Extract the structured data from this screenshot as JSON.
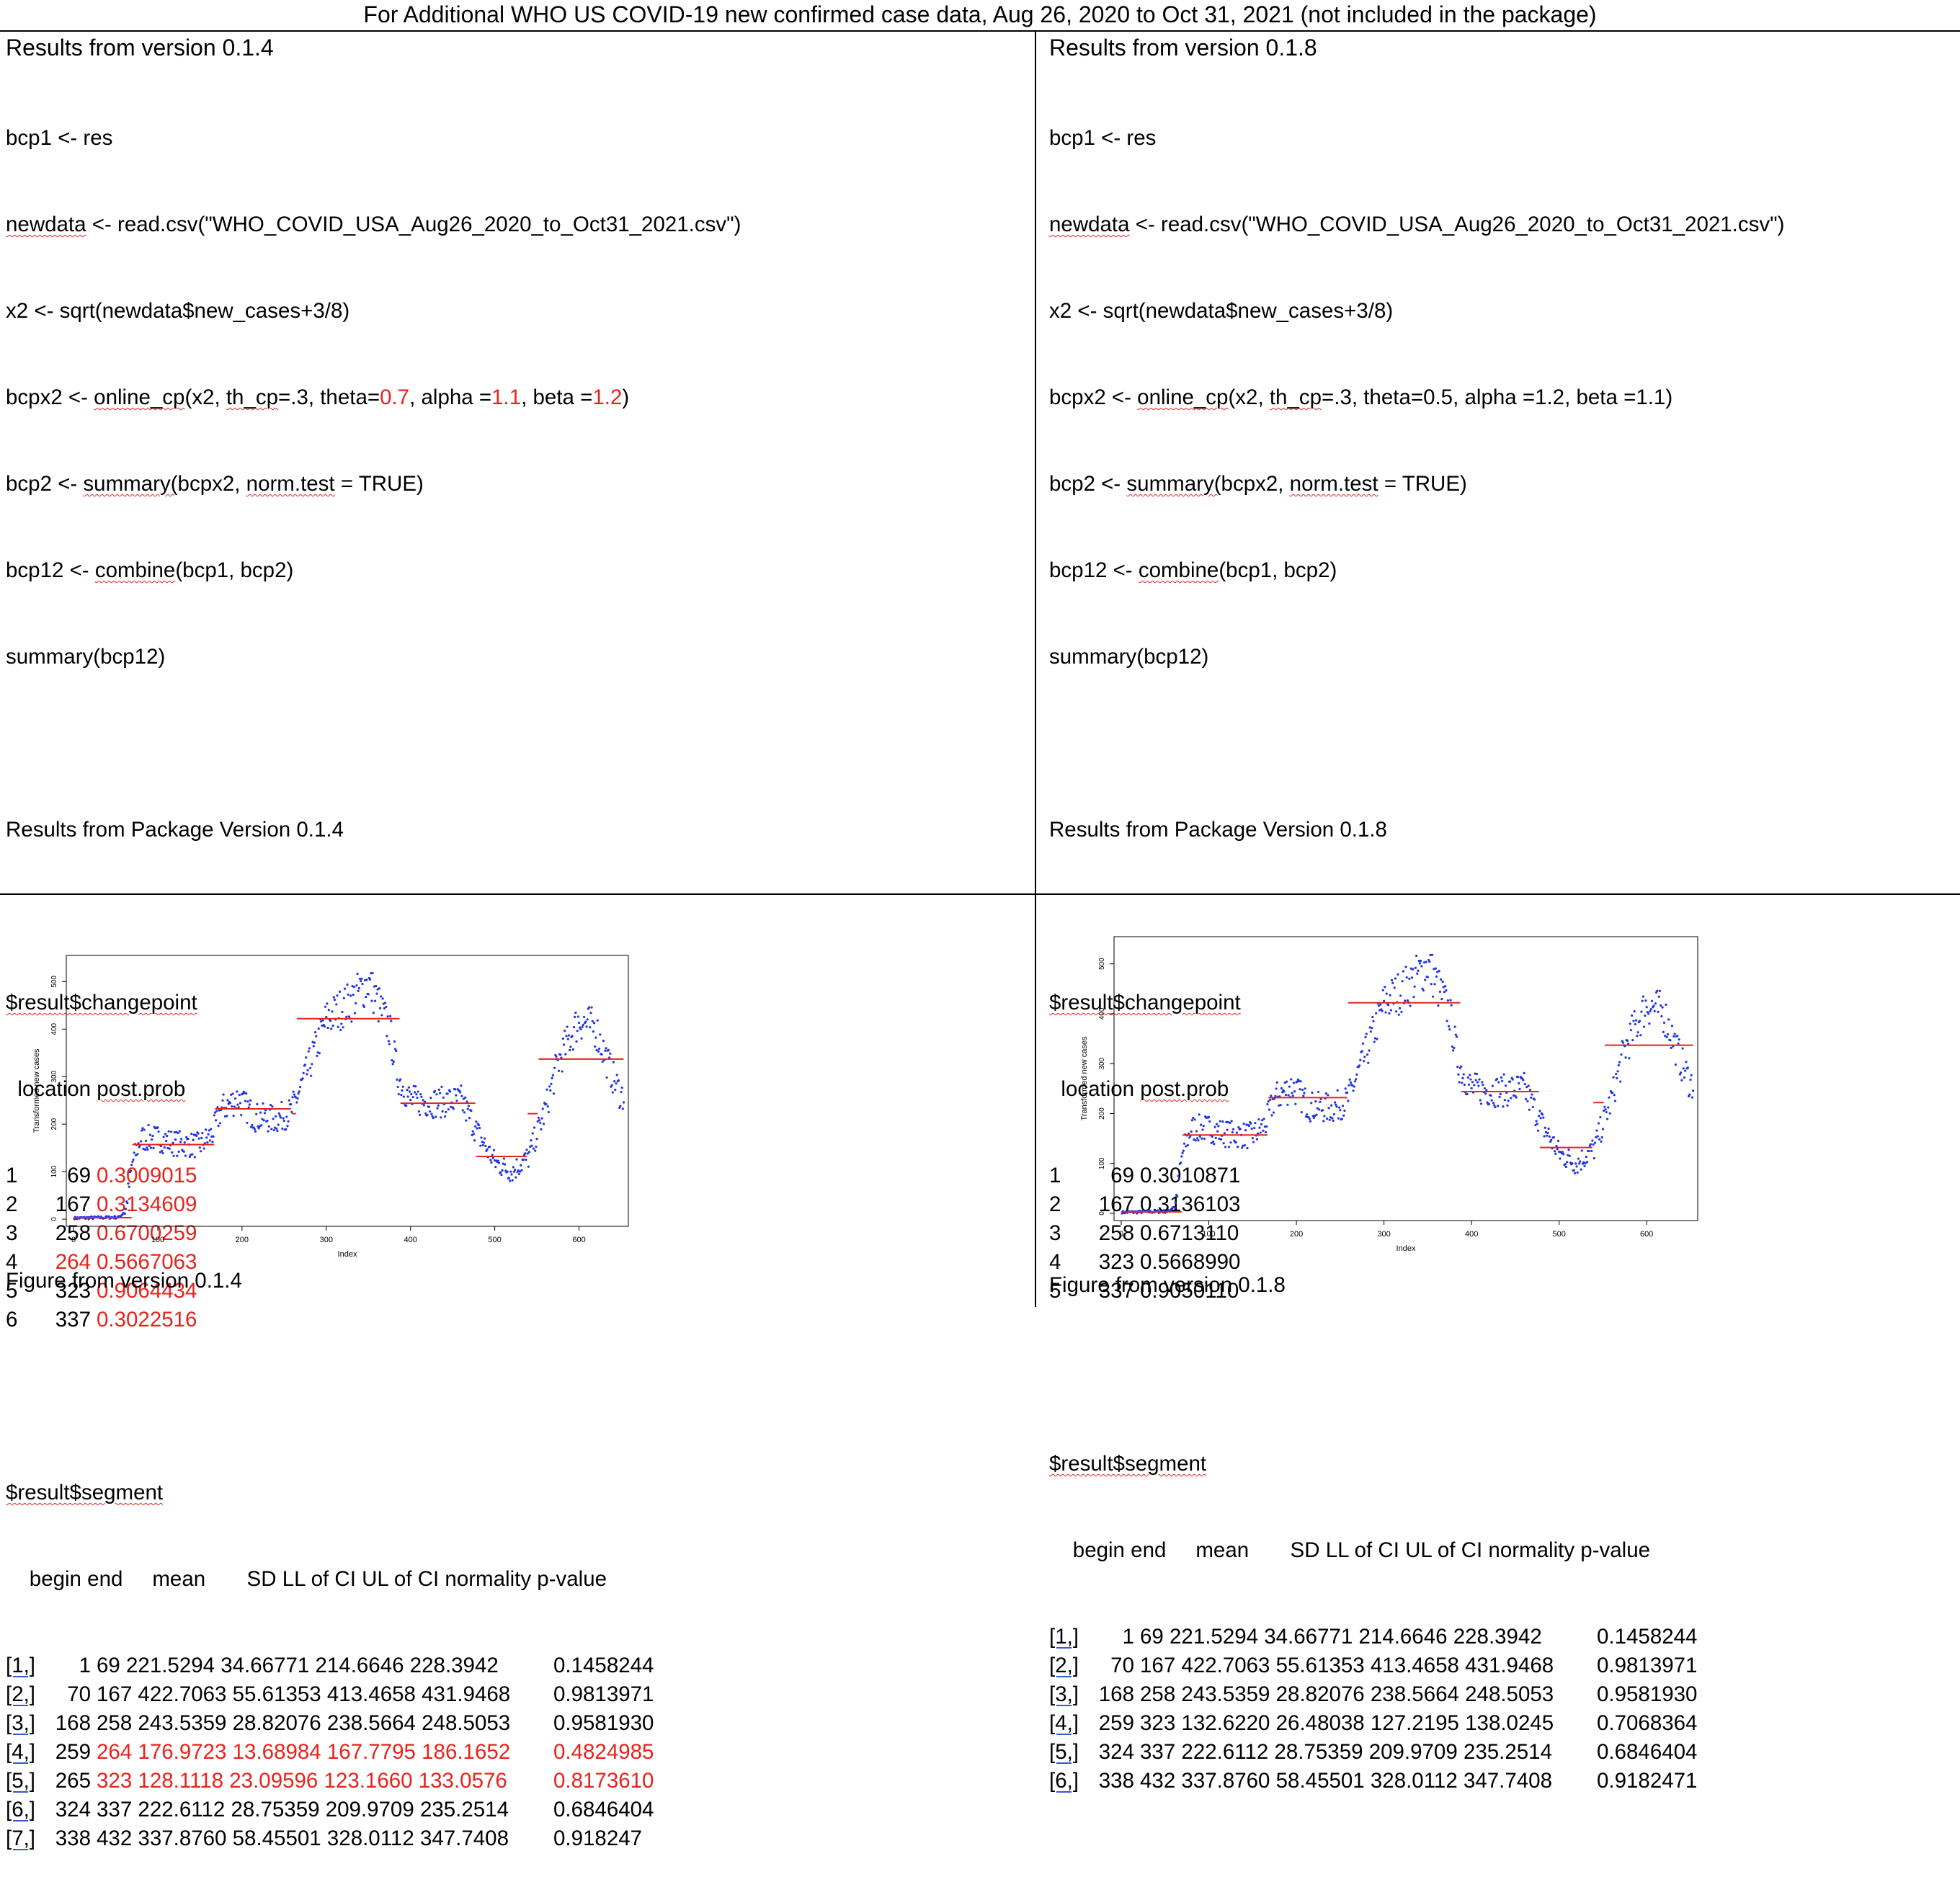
{
  "title": "For Additional WHO US COVID-19 new confirmed case data, Aug 26, 2020 to Oct 31, 2021 (not included in the package)",
  "left": {
    "header": "Results from version 0.1.4",
    "figure_caption": "Figure from version 0.1.4",
    "code": {
      "l1": "bcp1 <- res",
      "l2a": "newdata",
      "l2b": " <- read.csv(\"WHO_COVID_USA_Aug26_2020_to_Oct31_2021.csv\")",
      "l3": "x2 <- sqrt(newdata$new_cases+3/8)",
      "l4a": "bcpx2 <- ",
      "l4b": "online_cp",
      "l4c": "(x2, ",
      "l4d": "th_cp",
      "l4e": "=.3, theta=",
      "l4f": "0.7",
      "l4g": ", alpha =",
      "l4h": "1.1",
      "l4i": ", beta =",
      "l4j": "1.2",
      "l4k": ")",
      "l5a": "bcp2 <- ",
      "l5b": "summary(",
      "l5c": "bcpx2, ",
      "l5d": "norm.test",
      "l5e": " = TRUE)",
      "l6a": "bcp12 <- ",
      "l6b": "combine",
      "l6c": "(bcp1, bcp2)",
      "l7": "summary(bcp12)"
    },
    "results_title": "Results from Package Version 0.1.4",
    "changepoint_label": "$result$changepoint",
    "changepoint_header_a": "  location ",
    "changepoint_header_b": "post.prob",
    "changepoints": [
      {
        "idx": "1",
        "loc": "69",
        "prob": "0.3009015",
        "loc_red": false,
        "prob_red": true
      },
      {
        "idx": "2",
        "loc": "167",
        "prob": "0.3134609",
        "loc_red": false,
        "prob_red": true
      },
      {
        "idx": "3",
        "loc": "258",
        "prob": "0.6700259",
        "loc_red": false,
        "prob_red": true
      },
      {
        "idx": "4",
        "loc": "264",
        "prob": "0.5667063",
        "loc_red": true,
        "prob_red": true
      },
      {
        "idx": "5",
        "loc": "323",
        "prob": "0.9064434",
        "loc_red": false,
        "prob_red": true
      },
      {
        "idx": "6",
        "loc": "337",
        "prob": "0.3022516",
        "loc_red": false,
        "prob_red": true
      }
    ],
    "segment_label": "$result$segment",
    "segment_header": "    begin end     mean       SD LL of CI UL of CI normality p-value",
    "segments": [
      {
        "idx": "[1,]",
        "begin": "1",
        "rest": "69 221.5294 34.66771 214.6646 228.3942",
        "p": "0.1458244",
        "red": false
      },
      {
        "idx": "[2,]",
        "begin": "70",
        "rest": "167 422.7063 55.61353 413.4658 431.9468",
        "p": "0.9813971",
        "red": false
      },
      {
        "idx": "[3,]",
        "begin": "168",
        "rest": "258 243.5359 28.82076 238.5664 248.5053",
        "p": "0.9581930",
        "red": false
      },
      {
        "idx": "[4,]",
        "begin": "259",
        "rest": "264 176.9723 13.68984 167.7795 186.1652",
        "p": "0.4824985",
        "red": true
      },
      {
        "idx": "[5,]",
        "begin": "265",
        "rest": "323 128.1118 23.09596 123.1660 133.0576",
        "p": "0.8173610",
        "red": true
      },
      {
        "idx": "[6,]",
        "begin": "324",
        "rest": "337 222.6112 28.75359 209.9709 235.2514",
        "p": "0.6846404",
        "red": false
      },
      {
        "idx": "[7,]",
        "begin": "338",
        "rest": "432 337.8760 58.45501 328.0112 347.7408",
        "p": "0.918247",
        "red": false
      }
    ]
  },
  "right": {
    "header": "Results from version 0.1.8",
    "figure_caption": "Figure from version 0.1.8",
    "code": {
      "l1": "bcp1 <- res",
      "l2a": "newdata",
      "l2b": " <- read.csv(\"WHO_COVID_USA_Aug26_2020_to_Oct31_2021.csv\")",
      "l3": "x2 <- sqrt(newdata$new_cases+3/8)",
      "l4a": "bcpx2 <- ",
      "l4b": "online_cp",
      "l4c": "(x2, ",
      "l4d": "th_cp",
      "l4e": "=.3, theta=0.5, alpha =1.2, beta =1.1)",
      "l5a": "bcp2 <- ",
      "l5b": "summary(",
      "l5c": "bcpx2, ",
      "l5d": "norm.test",
      "l5e": " = TRUE)",
      "l6a": "bcp12 <- ",
      "l6b": "combine",
      "l6c": "(bcp1, bcp2)",
      "l7": "summary(bcp12)"
    },
    "results_title": "Results from Package Version 0.1.8",
    "changepoint_label": "$result$changepoint",
    "changepoint_header_a": "  location ",
    "changepoint_header_b": "post.prob",
    "changepoints": [
      {
        "idx": "1",
        "loc": "69",
        "prob": "0.3010871"
      },
      {
        "idx": "2",
        "loc": "167",
        "prob": "0.3136103"
      },
      {
        "idx": "3",
        "loc": "258",
        "prob": "0.6713110"
      },
      {
        "idx": "4",
        "loc": "323",
        "prob": "0.5668990"
      },
      {
        "idx": "5",
        "loc": "337",
        "prob": "0.9050110"
      }
    ],
    "segment_label": "$result$segment",
    "segment_header": "    begin end     mean       SD LL of CI UL of CI normality p-value",
    "segments": [
      {
        "idx": "[1,]",
        "begin": "1",
        "rest": "69 221.5294 34.66771 214.6646 228.3942",
        "p": "0.1458244"
      },
      {
        "idx": "[2,]",
        "begin": "70",
        "rest": "167 422.7063 55.61353 413.4658 431.9468",
        "p": "0.9813971"
      },
      {
        "idx": "[3,]",
        "begin": "168",
        "rest": "258 243.5359 28.82076 238.5664 248.5053",
        "p": "0.9581930"
      },
      {
        "idx": "[4,]",
        "begin": "259",
        "rest": "323 132.6220 26.48038 127.2195 138.0245",
        "p": "0.7068364"
      },
      {
        "idx": "[5,]",
        "begin": "324",
        "rest": "337 222.6112 28.75359 209.9709 235.2514",
        "p": "0.6846404"
      },
      {
        "idx": "[6,]",
        "begin": "338",
        "rest": "432 337.8760 58.45501 328.0112 347.7408",
        "p": "0.9182471"
      }
    ]
  },
  "chart_data": [
    {
      "type": "scatter",
      "xlabel": "Index",
      "ylabel": "Transformed new cases",
      "xlim": [
        0,
        650
      ],
      "ylim": [
        0,
        540
      ],
      "xticks": [
        "0",
        "100",
        "200",
        "300",
        "400",
        "500",
        "600"
      ],
      "yticks": [
        "0",
        "100",
        "200",
        "300",
        "400",
        "500"
      ],
      "point_color": "#1f33e6",
      "segment_color": "#e8231b",
      "trend_points": [
        [
          0,
          2
        ],
        [
          55,
          4
        ],
        [
          62,
          20
        ],
        [
          70,
          120
        ],
        [
          80,
          170
        ],
        [
          100,
          170
        ],
        [
          120,
          160
        ],
        [
          150,
          155
        ],
        [
          165,
          180
        ],
        [
          175,
          230
        ],
        [
          195,
          255
        ],
        [
          215,
          215
        ],
        [
          240,
          210
        ],
        [
          258,
          225
        ],
        [
          275,
          300
        ],
        [
          300,
          420
        ],
        [
          330,
          460
        ],
        [
          350,
          500
        ],
        [
          375,
          400
        ],
        [
          385,
          300
        ],
        [
          400,
          250
        ],
        [
          430,
          245
        ],
        [
          460,
          250
        ],
        [
          480,
          180
        ],
        [
          500,
          120
        ],
        [
          520,
          100
        ],
        [
          540,
          130
        ],
        [
          560,
          230
        ],
        [
          575,
          330
        ],
        [
          600,
          420
        ],
        [
          620,
          400
        ],
        [
          640,
          300
        ],
        [
          650,
          260
        ]
      ],
      "segments": [
        {
          "x0": 0,
          "x1": 69,
          "y": 3
        },
        {
          "x0": 70,
          "x1": 167,
          "y": 157
        },
        {
          "x0": 168,
          "x1": 258,
          "y": 232
        },
        {
          "x0": 259,
          "x1": 264,
          "y": 222
        },
        {
          "x0": 265,
          "x1": 387,
          "y": 422
        },
        {
          "x0": 388,
          "x1": 477,
          "y": 244
        },
        {
          "x0": 478,
          "x1": 538,
          "y": 132
        },
        {
          "x0": 539,
          "x1": 551,
          "y": 222
        },
        {
          "x0": 552,
          "x1": 653,
          "y": 337
        }
      ]
    },
    {
      "type": "scatter",
      "xlabel": "Index",
      "ylabel": "Transformed new cases",
      "xlim": [
        0,
        650
      ],
      "ylim": [
        0,
        540
      ],
      "xticks": [
        "0",
        "100",
        "200",
        "300",
        "400",
        "500",
        "600"
      ],
      "yticks": [
        "0",
        "100",
        "200",
        "300",
        "400",
        "500"
      ],
      "point_color": "#1f33e6",
      "segment_color": "#e8231b",
      "trend_points": [
        [
          0,
          2
        ],
        [
          55,
          4
        ],
        [
          62,
          20
        ],
        [
          70,
          120
        ],
        [
          80,
          170
        ],
        [
          100,
          170
        ],
        [
          120,
          160
        ],
        [
          150,
          155
        ],
        [
          165,
          180
        ],
        [
          175,
          230
        ],
        [
          195,
          255
        ],
        [
          215,
          215
        ],
        [
          240,
          210
        ],
        [
          258,
          225
        ],
        [
          275,
          300
        ],
        [
          300,
          420
        ],
        [
          330,
          460
        ],
        [
          350,
          500
        ],
        [
          375,
          400
        ],
        [
          385,
          300
        ],
        [
          400,
          250
        ],
        [
          430,
          245
        ],
        [
          460,
          250
        ],
        [
          480,
          180
        ],
        [
          500,
          120
        ],
        [
          520,
          100
        ],
        [
          540,
          130
        ],
        [
          560,
          230
        ],
        [
          575,
          330
        ],
        [
          600,
          420
        ],
        [
          620,
          400
        ],
        [
          640,
          300
        ],
        [
          650,
          260
        ]
      ],
      "segments": [
        {
          "x0": 0,
          "x1": 69,
          "y": 3
        },
        {
          "x0": 70,
          "x1": 167,
          "y": 157
        },
        {
          "x0": 168,
          "x1": 258,
          "y": 232
        },
        {
          "x0": 259,
          "x1": 387,
          "y": 422
        },
        {
          "x0": 388,
          "x1": 477,
          "y": 244
        },
        {
          "x0": 478,
          "x1": 538,
          "y": 132
        },
        {
          "x0": 539,
          "x1": 551,
          "y": 222
        },
        {
          "x0": 552,
          "x1": 653,
          "y": 337
        }
      ]
    }
  ]
}
